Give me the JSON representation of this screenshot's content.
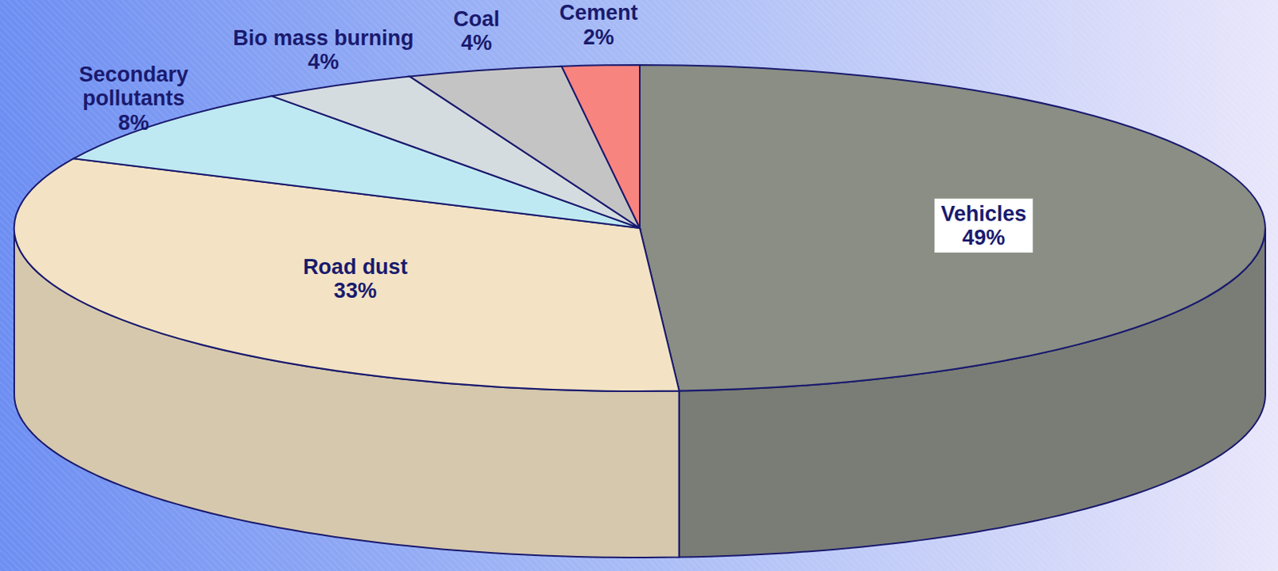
{
  "chart_data": {
    "type": "pie",
    "categories": [
      "Vehicles",
      "Road dust",
      "Secondary pollutants",
      "Bio mass burning",
      "Coal",
      "Cement"
    ],
    "values": [
      49,
      33,
      8,
      4,
      4,
      2
    ],
    "value_labels": [
      "49%",
      "33%",
      "8%",
      "4%",
      "4%",
      "2%"
    ],
    "colors": [
      "#8a8e84",
      "#f3e3c4",
      "#bfe9f2",
      "#d5dce0",
      "#c4c4c4",
      "#f88480"
    ],
    "data_labels": true
  }
}
